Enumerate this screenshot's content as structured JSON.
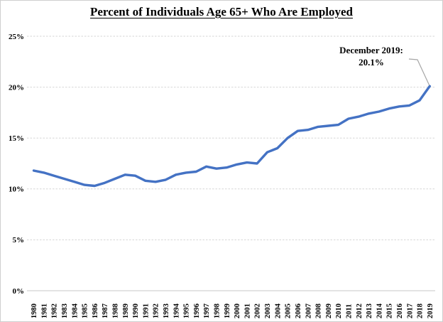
{
  "title": "Percent of Individuals Age 65+ Who Are Employed",
  "annotation": {
    "line1": "December 2019:",
    "line2": "20.1%"
  },
  "chart_data": {
    "type": "line",
    "title": "Percent of Individuals Age 65+ Who Are Employed",
    "x": [
      1980,
      1981,
      1982,
      1983,
      1984,
      1985,
      1986,
      1987,
      1988,
      1989,
      1990,
      1991,
      1992,
      1993,
      1994,
      1995,
      1996,
      1997,
      1998,
      1999,
      2000,
      2001,
      2002,
      2003,
      2004,
      2005,
      2006,
      2007,
      2008,
      2009,
      2010,
      2011,
      2012,
      2013,
      2014,
      2015,
      2016,
      2017,
      2018,
      2019
    ],
    "series": [
      {
        "name": "Percent of individuals age 65+ who are employed",
        "values": [
          11.8,
          11.6,
          11.3,
          11.0,
          10.7,
          10.4,
          10.3,
          10.6,
          11.0,
          11.4,
          11.3,
          10.8,
          10.7,
          10.9,
          11.4,
          11.6,
          11.7,
          12.2,
          12.0,
          12.1,
          12.4,
          12.6,
          12.5,
          13.6,
          14.0,
          15.0,
          15.7,
          15.8,
          16.1,
          16.2,
          16.3,
          16.9,
          17.1,
          17.4,
          17.6,
          17.9,
          18.1,
          18.2,
          18.7,
          20.1
        ]
      }
    ],
    "xlabel": "",
    "ylabel": "",
    "ylim": [
      0,
      25
    ],
    "ytick_step": 5,
    "ytick_labels": [
      "0%",
      "5%",
      "10%",
      "15%",
      "20%",
      "25%"
    ],
    "grid": "horizontal-dashed",
    "legend": "none",
    "line_color": "#4472C4",
    "gridline_color": "#d6d6d6",
    "leader_color": "#a6a6a6",
    "annotation_text": "December 2019: 20.1%"
  }
}
